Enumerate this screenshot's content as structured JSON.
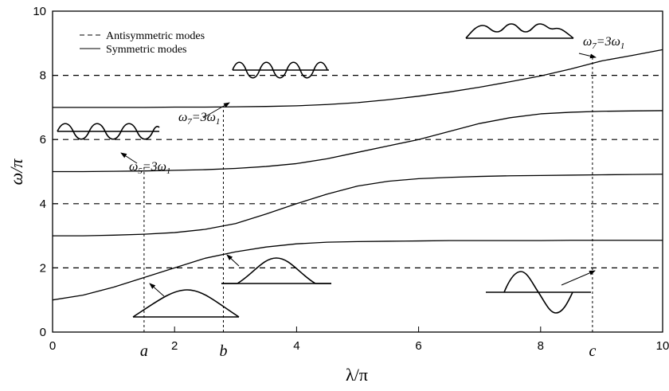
{
  "chart_data": {
    "type": "line",
    "x_label": "λ/π",
    "y_label": "ω/π",
    "xlim": [
      0,
      10
    ],
    "ylim": [
      0,
      10
    ],
    "xticks": [
      0,
      2,
      4,
      6,
      8,
      10
    ],
    "yticks": [
      0,
      2,
      4,
      6,
      8,
      10
    ],
    "antisymmetric": {
      "name": "Antisymmetric modes",
      "color": "#000000",
      "style": "dashed",
      "values": [
        2,
        4,
        6,
        8
      ]
    },
    "symmetric": {
      "name": "Symmetric modes",
      "color": "#000000",
      "style": "solid",
      "x": [
        0,
        0.5,
        1,
        1.5,
        2,
        2.5,
        3,
        3.5,
        4,
        4.5,
        5,
        5.5,
        6,
        6.5,
        7,
        7.5,
        8,
        8.5,
        9,
        9.5,
        10
      ],
      "curves": [
        [
          1.0,
          1.15,
          1.4,
          1.7,
          2.0,
          2.3,
          2.5,
          2.65,
          2.75,
          2.8,
          2.82,
          2.83,
          2.84,
          2.85,
          2.85,
          2.85,
          2.85,
          2.86,
          2.86,
          2.86,
          2.86
        ],
        [
          3.0,
          3.0,
          3.02,
          3.05,
          3.1,
          3.2,
          3.38,
          3.68,
          4.0,
          4.3,
          4.55,
          4.7,
          4.78,
          4.82,
          4.85,
          4.87,
          4.88,
          4.89,
          4.9,
          4.91,
          4.92
        ],
        [
          5.0,
          5.0,
          5.01,
          5.02,
          5.04,
          5.06,
          5.1,
          5.16,
          5.25,
          5.4,
          5.6,
          5.8,
          6.0,
          6.25,
          6.5,
          6.68,
          6.8,
          6.85,
          6.88,
          6.89,
          6.9
        ],
        [
          7.0,
          7.0,
          7.0,
          7.0,
          7.01,
          7.01,
          7.02,
          7.03,
          7.05,
          7.09,
          7.15,
          7.24,
          7.35,
          7.48,
          7.63,
          7.8,
          7.98,
          8.2,
          8.45,
          8.62,
          8.8
        ]
      ]
    },
    "markers": [
      {
        "label": "a",
        "x": 1.5,
        "top": 5.2
      },
      {
        "label": "b",
        "x": 2.8,
        "top": 7.0
      },
      {
        "label": "c",
        "x": 8.85,
        "top": 8.55
      }
    ],
    "annotations": [
      [
        "ω",
        "5",
        "=3ω",
        "1"
      ],
      [
        "ω",
        "7",
        "=3ω",
        "1"
      ],
      [
        "ω",
        "7",
        "=3ω",
        "1"
      ]
    ]
  }
}
